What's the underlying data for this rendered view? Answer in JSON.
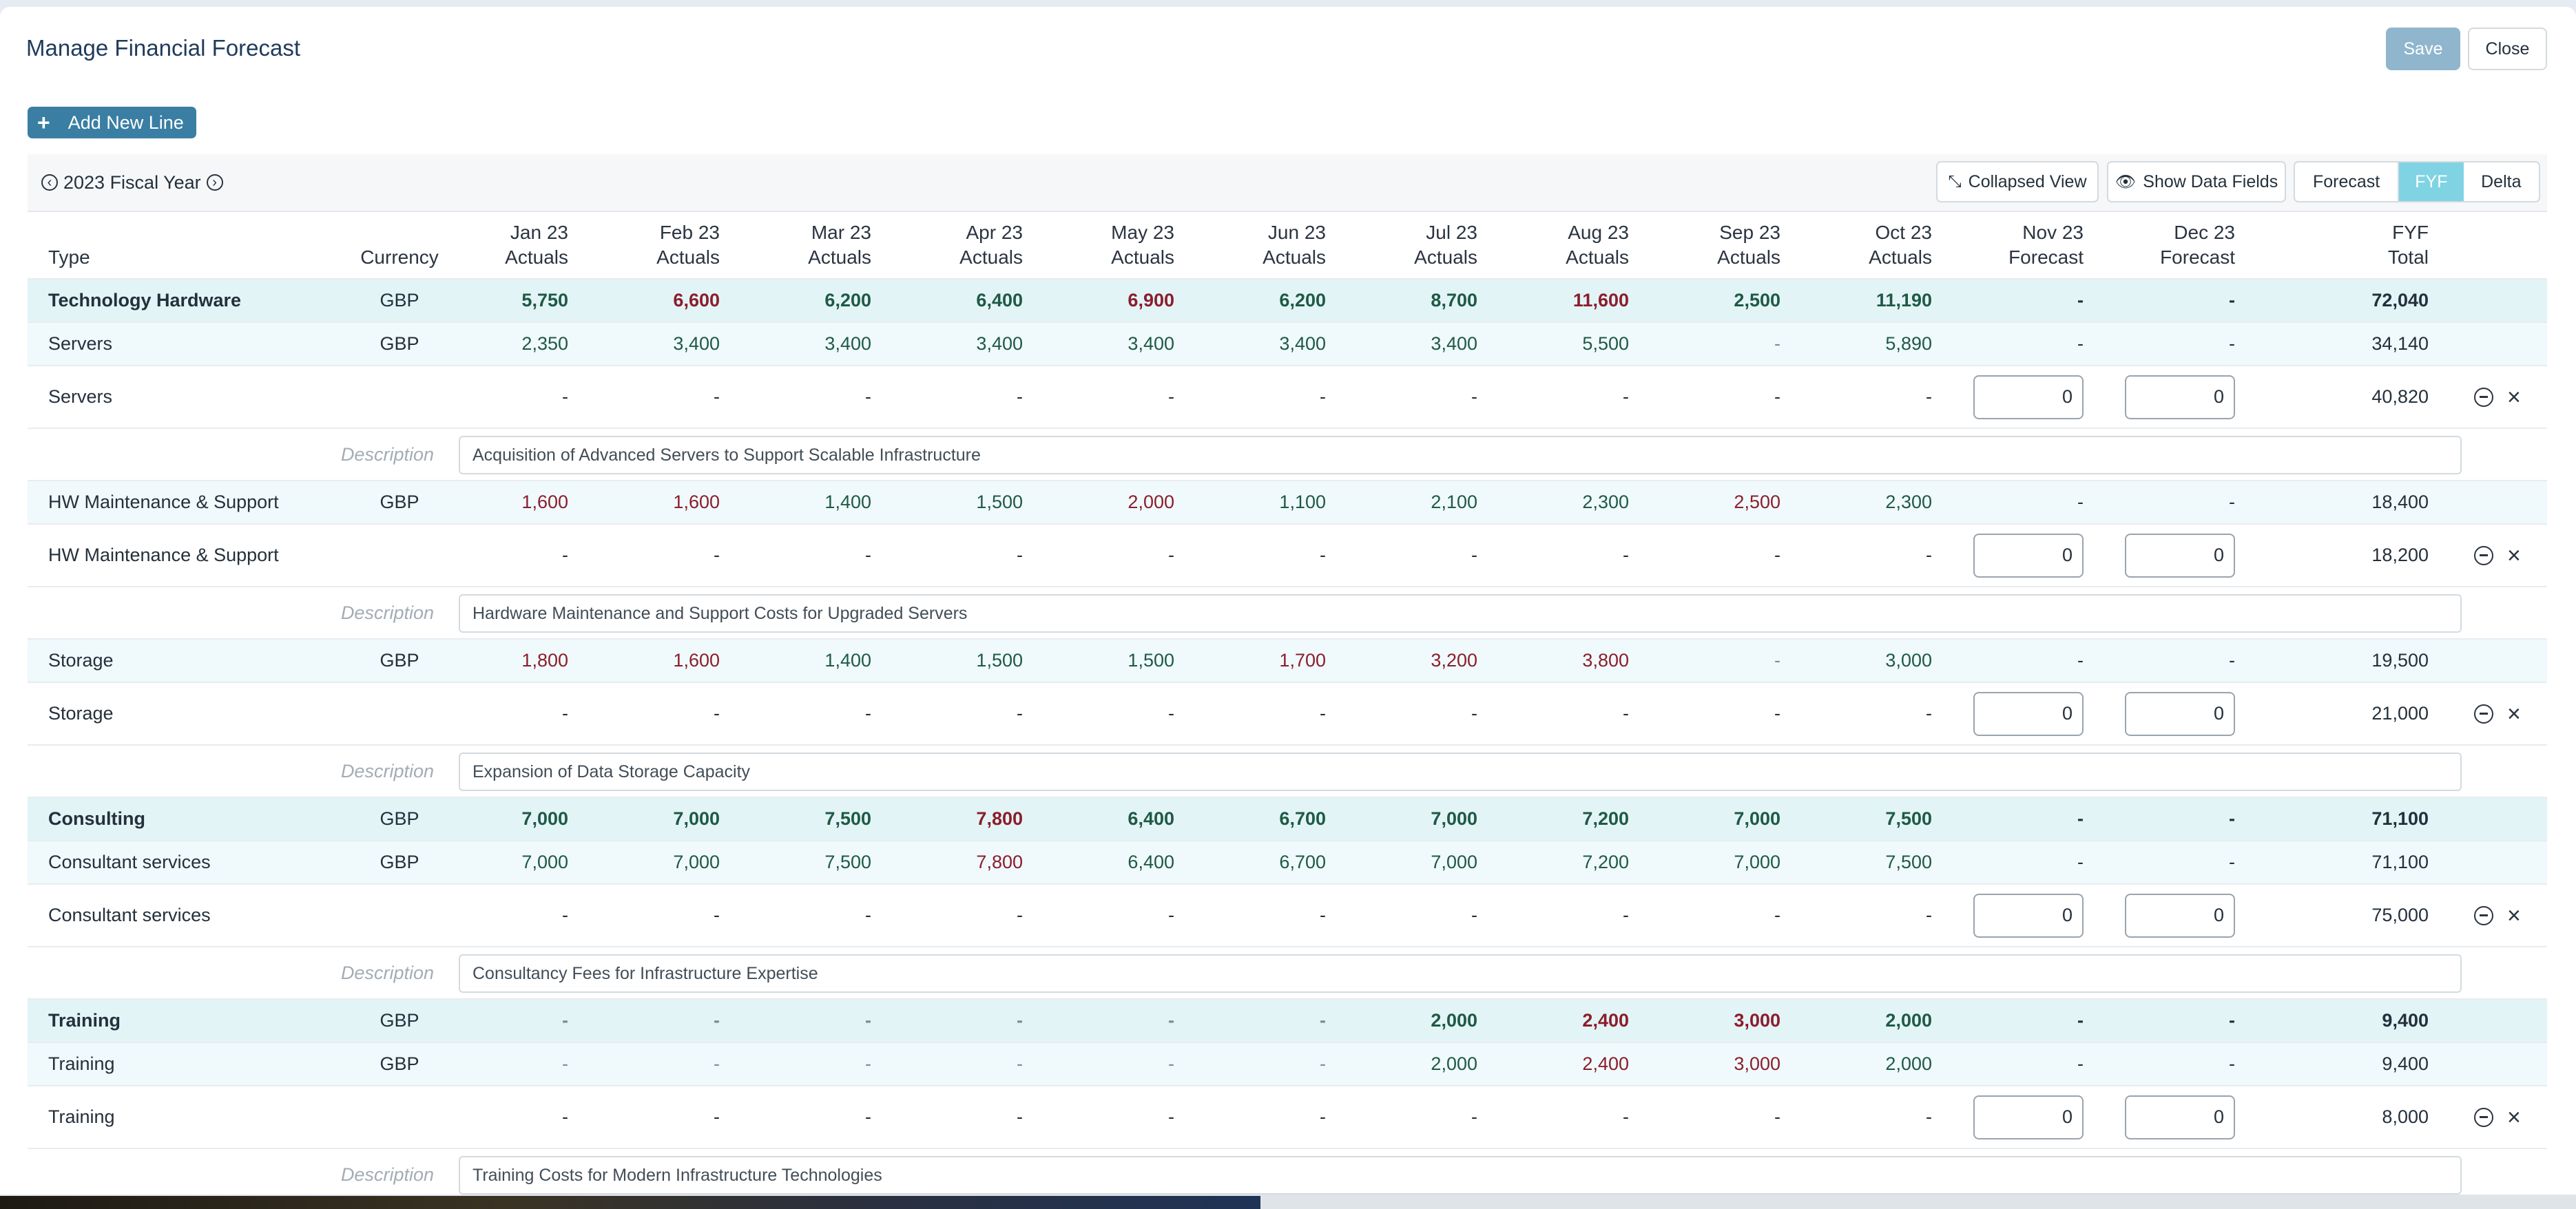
{
  "title": "Manage Financial Forecast",
  "buttons": {
    "save": "Save",
    "close": "Close",
    "add_new_line": "Add New Line"
  },
  "toolbar": {
    "fiscal_year": "2023 Fiscal Year",
    "collapsed_view": "Collapsed View",
    "show_data_fields": "Show Data Fields",
    "views": [
      "Forecast",
      "FYF",
      "Delta"
    ],
    "active_view": "FYF"
  },
  "columns": {
    "type": "Type",
    "currency": "Currency",
    "months": [
      {
        "m": "Jan 23",
        "k": "Actuals"
      },
      {
        "m": "Feb 23",
        "k": "Actuals"
      },
      {
        "m": "Mar 23",
        "k": "Actuals"
      },
      {
        "m": "Apr 23",
        "k": "Actuals"
      },
      {
        "m": "May 23",
        "k": "Actuals"
      },
      {
        "m": "Jun 23",
        "k": "Actuals"
      },
      {
        "m": "Jul 23",
        "k": "Actuals"
      },
      {
        "m": "Aug 23",
        "k": "Actuals"
      },
      {
        "m": "Sep 23",
        "k": "Actuals"
      },
      {
        "m": "Oct 23",
        "k": "Actuals"
      },
      {
        "m": "Nov 23",
        "k": "Forecast"
      },
      {
        "m": "Dec 23",
        "k": "Forecast"
      }
    ],
    "total_top": "FYF",
    "total_bottom": "Total"
  },
  "description_label": "Description",
  "rows": [
    {
      "kind": "grp",
      "type": "Technology Hardware",
      "currency": "GBP",
      "vals": [
        "5,750",
        "6,600",
        "6,200",
        "6,400",
        "6,900",
        "6,200",
        "8,700",
        "11,600",
        "2,500",
        "11,190",
        "-",
        "-"
      ],
      "colors": [
        "g",
        "r",
        "g",
        "g",
        "r",
        "g",
        "g",
        "r",
        "g",
        "g",
        "n",
        "n"
      ],
      "total": "72,040"
    },
    {
      "kind": "sub",
      "type": "Servers",
      "currency": "GBP",
      "vals": [
        "2,350",
        "3,400",
        "3,400",
        "3,400",
        "3,400",
        "3,400",
        "3,400",
        "5,500",
        "-",
        "5,890",
        "-",
        "-"
      ],
      "colors": [
        "g",
        "g",
        "g",
        "g",
        "g",
        "g",
        "g",
        "g",
        "m",
        "g",
        "n",
        "n"
      ],
      "total": "34,140"
    },
    {
      "kind": "edit",
      "type": "Servers",
      "vals": [
        "-",
        "-",
        "-",
        "-",
        "-",
        "-",
        "-",
        "-",
        "-",
        "-"
      ],
      "inputs": [
        "0",
        "0"
      ],
      "total": "40,820"
    },
    {
      "kind": "desc",
      "text": "Acquisition of Advanced Servers to Support Scalable Infrastructure"
    },
    {
      "kind": "sub",
      "type": "HW Maintenance & Support",
      "currency": "GBP",
      "vals": [
        "1,600",
        "1,600",
        "1,400",
        "1,500",
        "2,000",
        "1,100",
        "2,100",
        "2,300",
        "2,500",
        "2,300",
        "-",
        "-"
      ],
      "colors": [
        "r",
        "r",
        "g",
        "g",
        "r",
        "g",
        "g",
        "g",
        "r",
        "g",
        "n",
        "n"
      ],
      "total": "18,400"
    },
    {
      "kind": "edit",
      "type": "HW Maintenance & Support",
      "vals": [
        "-",
        "-",
        "-",
        "-",
        "-",
        "-",
        "-",
        "-",
        "-",
        "-"
      ],
      "inputs": [
        "0",
        "0"
      ],
      "total": "18,200"
    },
    {
      "kind": "desc",
      "text": "Hardware Maintenance and Support Costs for Upgraded Servers"
    },
    {
      "kind": "sub",
      "type": "Storage",
      "currency": "GBP",
      "vals": [
        "1,800",
        "1,600",
        "1,400",
        "1,500",
        "1,500",
        "1,700",
        "3,200",
        "3,800",
        "-",
        "3,000",
        "-",
        "-"
      ],
      "colors": [
        "r",
        "r",
        "g",
        "g",
        "g",
        "r",
        "r",
        "r",
        "m",
        "g",
        "n",
        "n"
      ],
      "total": "19,500"
    },
    {
      "kind": "edit",
      "type": "Storage",
      "vals": [
        "-",
        "-",
        "-",
        "-",
        "-",
        "-",
        "-",
        "-",
        "-",
        "-"
      ],
      "inputs": [
        "0",
        "0"
      ],
      "total": "21,000"
    },
    {
      "kind": "desc",
      "text": "Expansion of Data Storage Capacity"
    },
    {
      "kind": "grp",
      "type": "Consulting",
      "currency": "GBP",
      "vals": [
        "7,000",
        "7,000",
        "7,500",
        "7,800",
        "6,400",
        "6,700",
        "7,000",
        "7,200",
        "7,000",
        "7,500",
        "-",
        "-"
      ],
      "colors": [
        "g",
        "g",
        "g",
        "r",
        "g",
        "g",
        "g",
        "g",
        "g",
        "g",
        "n",
        "n"
      ],
      "total": "71,100"
    },
    {
      "kind": "sub",
      "type": "Consultant services",
      "currency": "GBP",
      "vals": [
        "7,000",
        "7,000",
        "7,500",
        "7,800",
        "6,400",
        "6,700",
        "7,000",
        "7,200",
        "7,000",
        "7,500",
        "-",
        "-"
      ],
      "colors": [
        "g",
        "g",
        "g",
        "r",
        "g",
        "g",
        "g",
        "g",
        "g",
        "g",
        "n",
        "n"
      ],
      "total": "71,100"
    },
    {
      "kind": "edit",
      "type": "Consultant services",
      "vals": [
        "-",
        "-",
        "-",
        "-",
        "-",
        "-",
        "-",
        "-",
        "-",
        "-"
      ],
      "inputs": [
        "0",
        "0"
      ],
      "total": "75,000"
    },
    {
      "kind": "desc",
      "text": "Consultancy Fees for Infrastructure Expertise"
    },
    {
      "kind": "grp",
      "type": "Training",
      "currency": "GBP",
      "vals": [
        "-",
        "-",
        "-",
        "-",
        "-",
        "-",
        "2,000",
        "2,400",
        "3,000",
        "2,000",
        "-",
        "-"
      ],
      "colors": [
        "m",
        "m",
        "m",
        "m",
        "m",
        "m",
        "g",
        "r",
        "r",
        "g",
        "n",
        "n"
      ],
      "total": "9,400"
    },
    {
      "kind": "sub",
      "type": "Training",
      "currency": "GBP",
      "vals": [
        "-",
        "-",
        "-",
        "-",
        "-",
        "-",
        "2,000",
        "2,400",
        "3,000",
        "2,000",
        "-",
        "-"
      ],
      "colors": [
        "m",
        "m",
        "m",
        "m",
        "m",
        "m",
        "g",
        "r",
        "r",
        "g",
        "n",
        "n"
      ],
      "total": "9,400"
    },
    {
      "kind": "edit",
      "type": "Training",
      "vals": [
        "-",
        "-",
        "-",
        "-",
        "-",
        "-",
        "-",
        "-",
        "-",
        "-"
      ],
      "inputs": [
        "0",
        "0"
      ],
      "total": "8,000"
    },
    {
      "kind": "desc",
      "text": "Training Costs for Modern Infrastructure Technologies"
    }
  ]
}
